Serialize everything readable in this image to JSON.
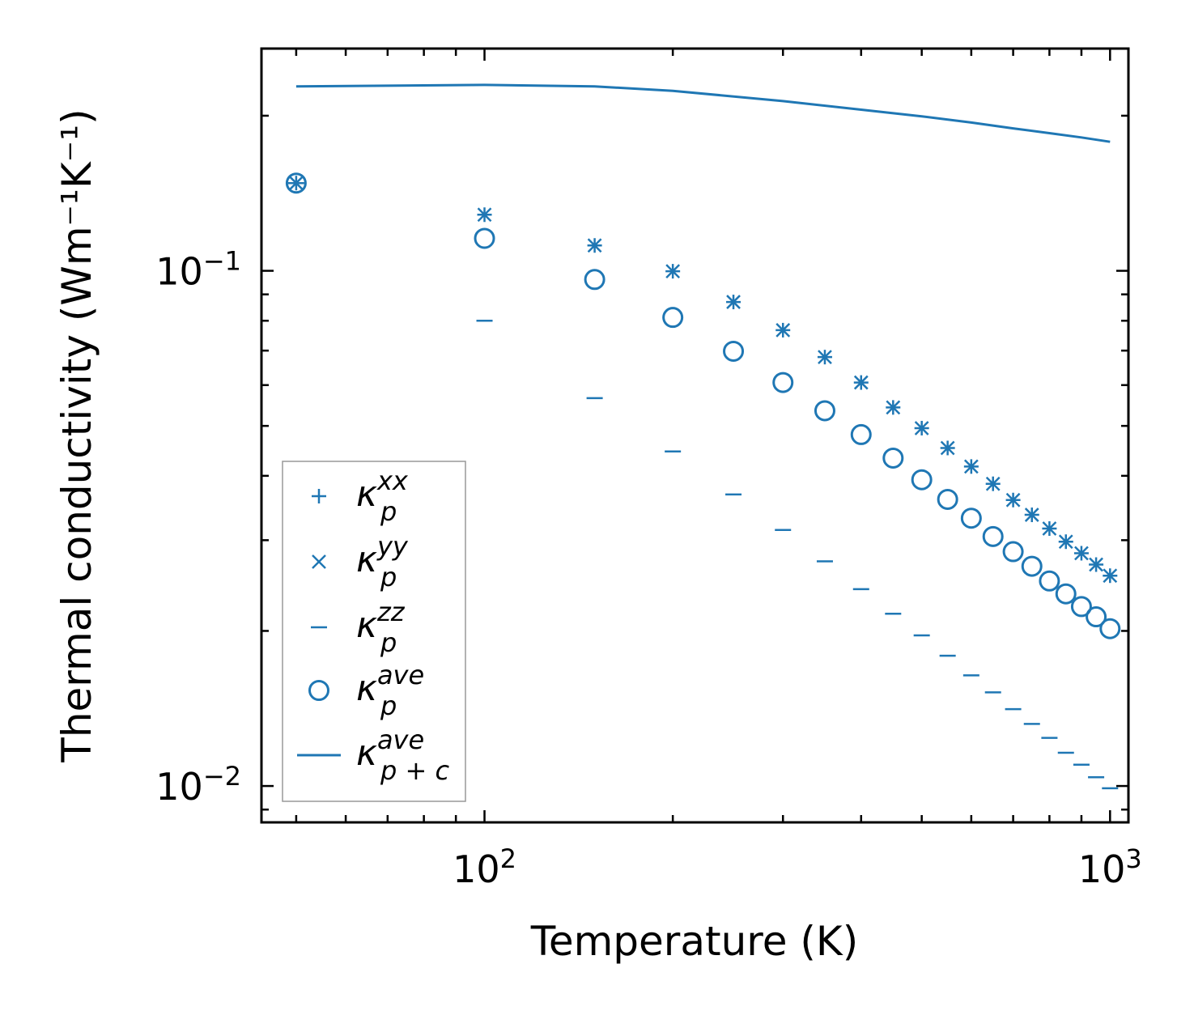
{
  "chart_data": {
    "type": "scatter",
    "title": "",
    "xlabel": "Temperature (K)",
    "ylabel": "Thermal conductivity (Wm⁻¹K⁻¹)",
    "xscale": "log",
    "yscale": "log",
    "xlim": [
      44,
      1070
    ],
    "ylim": [
      0.0085,
      0.27
    ],
    "x_ticks": [
      {
        "base": "10",
        "exp": "2"
      },
      {
        "base": "10",
        "exp": "3"
      }
    ],
    "y_ticks": [
      {
        "base": "10",
        "exp": "−1"
      },
      {
        "base": "10",
        "exp": "−2"
      }
    ],
    "x_tick_values": [
      100,
      1000
    ],
    "y_tick_values": [
      0.1,
      0.01
    ],
    "legend_position": "lower-left",
    "color": "#1f77b4",
    "temperatures": [
      50,
      100,
      150,
      200,
      250,
      300,
      350,
      400,
      450,
      500,
      550,
      600,
      650,
      700,
      750,
      800,
      850,
      900,
      950,
      1000
    ],
    "series": [
      {
        "name": "kp_xx",
        "label_base": "κ",
        "label_sub": "p",
        "label_sup": "xx",
        "marker": "plus",
        "values": [
          0.148,
          0.1285,
          0.112,
          0.0998,
          0.087,
          0.0767,
          0.068,
          0.0607,
          0.0543,
          0.0495,
          0.0453,
          0.0417,
          0.0386,
          0.0359,
          0.0336,
          0.0316,
          0.0298,
          0.0283,
          0.0269,
          0.0256
        ]
      },
      {
        "name": "kp_yy",
        "label_base": "κ",
        "label_sub": "p",
        "label_sup": "yy",
        "marker": "x",
        "values": [
          0.148,
          0.1285,
          0.112,
          0.0998,
          0.087,
          0.0767,
          0.068,
          0.0607,
          0.0543,
          0.0495,
          0.0453,
          0.0417,
          0.0386,
          0.0359,
          0.0336,
          0.0316,
          0.0298,
          0.0283,
          0.0269,
          0.0256
        ]
      },
      {
        "name": "kp_zz",
        "label_base": "κ",
        "label_sub": "p",
        "label_sup": "zz",
        "marker": "hline",
        "values": [
          0.148,
          0.08,
          0.0566,
          0.0446,
          0.0368,
          0.0314,
          0.0273,
          0.0241,
          0.0216,
          0.0196,
          0.0179,
          0.0164,
          0.0152,
          0.0141,
          0.0132,
          0.0124,
          0.0116,
          0.011,
          0.0104,
          0.0099
        ]
      },
      {
        "name": "kp_ave",
        "label_base": "κ",
        "label_sub": "p",
        "label_sup": "ave",
        "marker": "circle",
        "values": [
          0.148,
          0.1156,
          0.0962,
          0.0812,
          0.0698,
          0.0607,
          0.0535,
          0.0481,
          0.0433,
          0.0393,
          0.036,
          0.0331,
          0.0305,
          0.0285,
          0.0267,
          0.025,
          0.0236,
          0.0223,
          0.0213,
          0.0202
        ]
      },
      {
        "name": "kpc_ave",
        "label_base": "κ",
        "label_sub": "p + c",
        "label_sup": "ave",
        "marker": "line",
        "x": [
          50,
          100,
          150,
          200,
          300,
          400,
          500,
          600,
          700,
          800,
          900,
          1000
        ],
        "values": [
          0.228,
          0.2295,
          0.228,
          0.2235,
          0.2135,
          0.2055,
          0.1995,
          0.194,
          0.189,
          0.185,
          0.1815,
          0.178
        ]
      }
    ]
  }
}
